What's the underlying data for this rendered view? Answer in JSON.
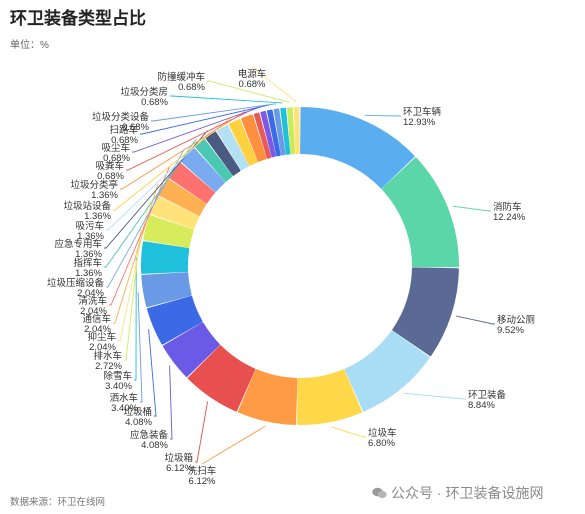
{
  "title": "环卫装备类型占比",
  "unit_label": "单位：%",
  "source_label": "数据来源：环卫在线网",
  "watermark": {
    "icon": "wechat-icon",
    "text": "公众号 · 环卫装备设施网"
  },
  "chart_data": {
    "type": "pie",
    "variant": "donut",
    "title": "环卫装备类型占比",
    "unit": "%",
    "slices": [
      {
        "name": "环卫车辆",
        "value": 12.93,
        "label": "12.93%",
        "color": "#5aaef0"
      },
      {
        "name": "消防车",
        "value": 12.24,
        "label": "12.24%",
        "color": "#5ad6a8"
      },
      {
        "name": "移动公厕",
        "value": 9.52,
        "label": "9.52%",
        "color": "#5a6a94"
      },
      {
        "name": "环卫装备",
        "value": 8.84,
        "label": "8.84%",
        "color": "#a8ddf5"
      },
      {
        "name": "垃圾车",
        "value": 6.8,
        "label": "6.80%",
        "color": "#ffd84a"
      },
      {
        "name": "洗扫车",
        "value": 6.12,
        "label": "6.12%",
        "color": "#ff9a45"
      },
      {
        "name": "垃圾箱",
        "value": 6.12,
        "label": "6.12%",
        "color": "#e85050"
      },
      {
        "name": "应急装备",
        "value": 4.08,
        "label": "4.08%",
        "color": "#6a5ae6"
      },
      {
        "name": "垃圾桶",
        "value": 4.08,
        "label": "4.08%",
        "color": "#3c6ae6"
      },
      {
        "name": "洒水车",
        "value": 3.4,
        "label": "3.40%",
        "color": "#6a9ae6"
      },
      {
        "name": "除雪车",
        "value": 3.4,
        "label": "3.40%",
        "color": "#1ec0dc"
      },
      {
        "name": "排水车",
        "value": 2.72,
        "label": "2.72%",
        "color": "#d6ec5a"
      },
      {
        "name": "抑尘车",
        "value": 2.04,
        "label": "2.04%",
        "color": "#ffe27a"
      },
      {
        "name": "通信车",
        "value": 2.04,
        "label": "2.04%",
        "color": "#ffb050"
      },
      {
        "name": "清洗车",
        "value": 2.04,
        "label": "2.04%",
        "color": "#ff7070"
      },
      {
        "name": "垃圾压缩设备",
        "value": 2.04,
        "label": "2.04%",
        "color": "#7aaaf0"
      },
      {
        "name": "指挥车",
        "value": 1.36,
        "label": "1.36%",
        "color": "#4ac8b4"
      },
      {
        "name": "应急专用车",
        "value": 1.36,
        "label": "1.36%",
        "color": "#4a5a80"
      },
      {
        "name": "吸污车",
        "value": 1.36,
        "label": "1.36%",
        "color": "#b4e0f4"
      },
      {
        "name": "垃圾站设备",
        "value": 1.36,
        "label": "1.36%",
        "color": "#ffd040"
      },
      {
        "name": "垃圾分类亭",
        "value": 1.36,
        "label": "1.36%",
        "color": "#ff9040"
      },
      {
        "name": "吸粪车",
        "value": 0.68,
        "label": "0.68%",
        "color": "#e85a5a"
      },
      {
        "name": "吸尘车",
        "value": 0.68,
        "label": "0.68%",
        "color": "#7a5ae6"
      },
      {
        "name": "扫路车",
        "value": 0.68,
        "label": "0.68%",
        "color": "#3c6ae6"
      },
      {
        "name": "垃圾分类设备",
        "value": 0.68,
        "label": "0.68%",
        "color": "#6a9ae6"
      },
      {
        "name": "垃圾分类房",
        "value": 0.68,
        "label": "0.68%",
        "color": "#1ec0dc"
      },
      {
        "name": "防撞缓冲车",
        "value": 0.68,
        "label": "0.68%",
        "color": "#c8ec5a"
      },
      {
        "name": "电源车",
        "value": 0.68,
        "label": "0.68%",
        "color": "#ffe27a"
      }
    ]
  }
}
